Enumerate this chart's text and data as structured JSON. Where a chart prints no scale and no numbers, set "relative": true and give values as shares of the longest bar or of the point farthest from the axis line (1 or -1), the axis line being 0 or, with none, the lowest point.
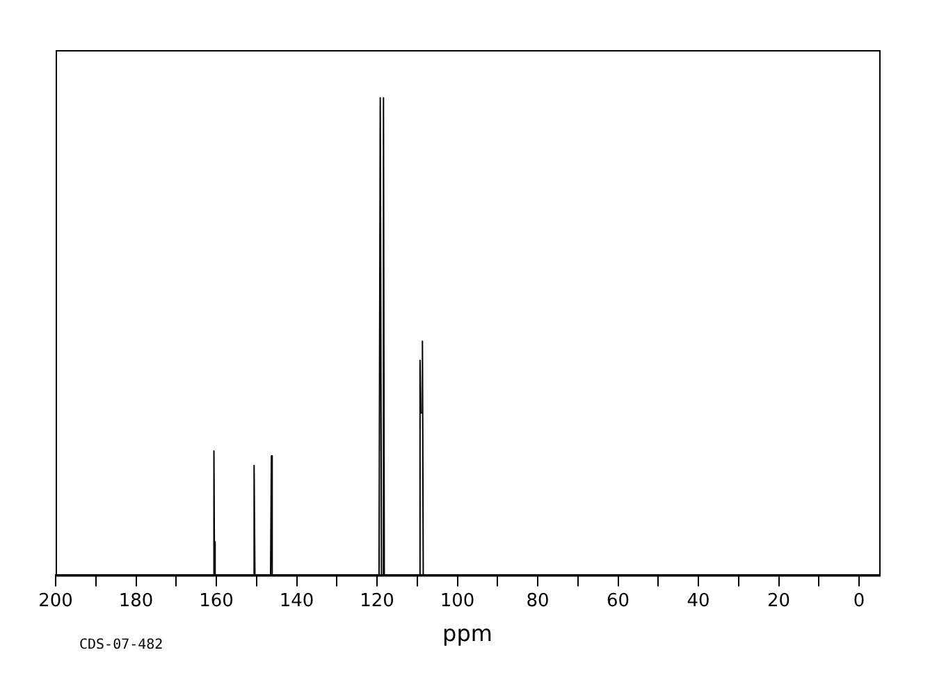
{
  "chart_data": {
    "type": "line",
    "xlabel": "ppm",
    "relative": true,
    "xlim": [
      200,
      -5
    ],
    "xticks": [
      200,
      {
        "value": 190,
        "label": null
      },
      180,
      {
        "value": 170,
        "label": null
      },
      160,
      {
        "value": 150,
        "label": null
      },
      140,
      {
        "value": 130,
        "label": null
      },
      120,
      {
        "value": 110,
        "label": null
      },
      100,
      {
        "value": 90,
        "label": null
      },
      80,
      {
        "value": 70,
        "label": null
      },
      60,
      {
        "value": 50,
        "label": null
      },
      40,
      {
        "value": 30,
        "label": null
      },
      20,
      {
        "value": 10,
        "label": null
      },
      0
    ],
    "x": [
      200,
      160.8,
      160.6,
      160.5,
      160.3,
      150.8,
      150.6,
      150.4,
      146.5,
      146.3,
      146.1,
      119.5,
      119.2,
      118.9,
      118.6,
      118.4,
      118.2,
      109.6,
      109.3,
      109.1,
      108.9,
      108.7,
      108.5,
      -5
    ],
    "series": [
      {
        "color": "#000000",
        "values": [
          0,
          0,
          0.26,
          0.07,
          0,
          0,
          0.23,
          0,
          0,
          0.25,
          0,
          0,
          1,
          0,
          0,
          1,
          0,
          0,
          0.45,
          0.34,
          0.34,
          0.49,
          0,
          0
        ]
      }
    ],
    "grid": false,
    "legend": false,
    "marker": "none",
    "line_style": "solid",
    "tick_labels": "x",
    "annotations": [
      "CDS-07-482"
    ]
  }
}
